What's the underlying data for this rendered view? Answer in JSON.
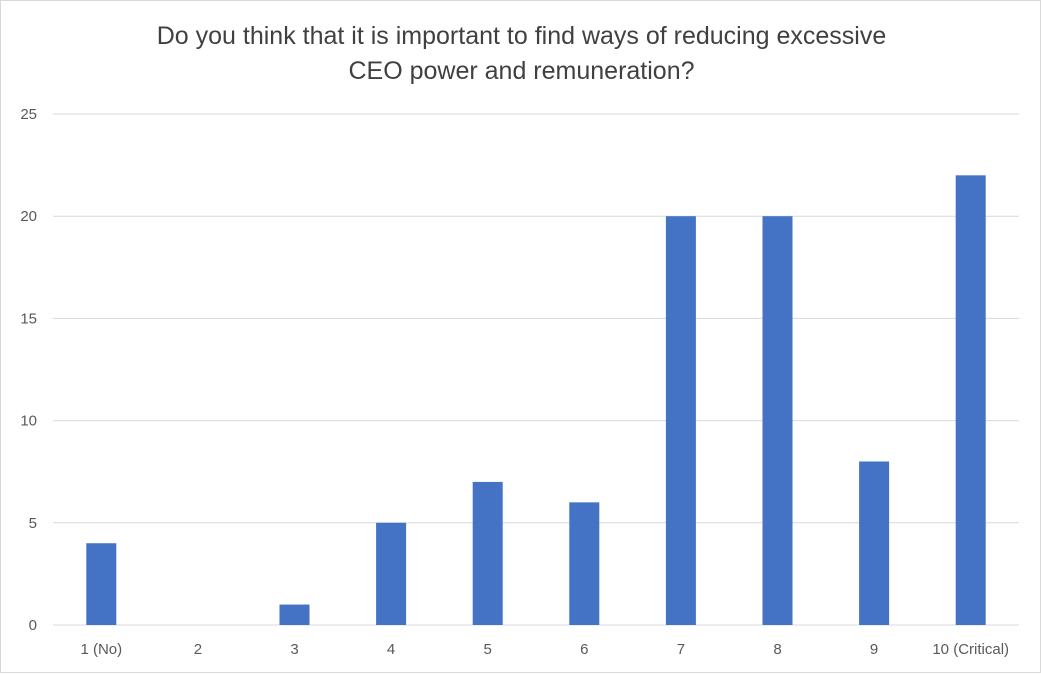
{
  "chart_data": {
    "type": "bar",
    "title_lines": [
      "Do you think that it is important to find ways of reducing excessive",
      "CEO power and remuneration?"
    ],
    "categories": [
      "1 (No)",
      "2",
      "3",
      "4",
      "5",
      "6",
      "7",
      "8",
      "9",
      "10 (Critical)"
    ],
    "values": [
      4,
      0,
      1,
      5,
      7,
      6,
      20,
      20,
      8,
      22
    ],
    "ylim": [
      0,
      25
    ],
    "yticks": [
      "0",
      "5",
      "10",
      "15",
      "20",
      "25"
    ],
    "grid": true,
    "legend": "none",
    "bar_color": "#4472C4",
    "grid_color": "#d9d9d9"
  }
}
